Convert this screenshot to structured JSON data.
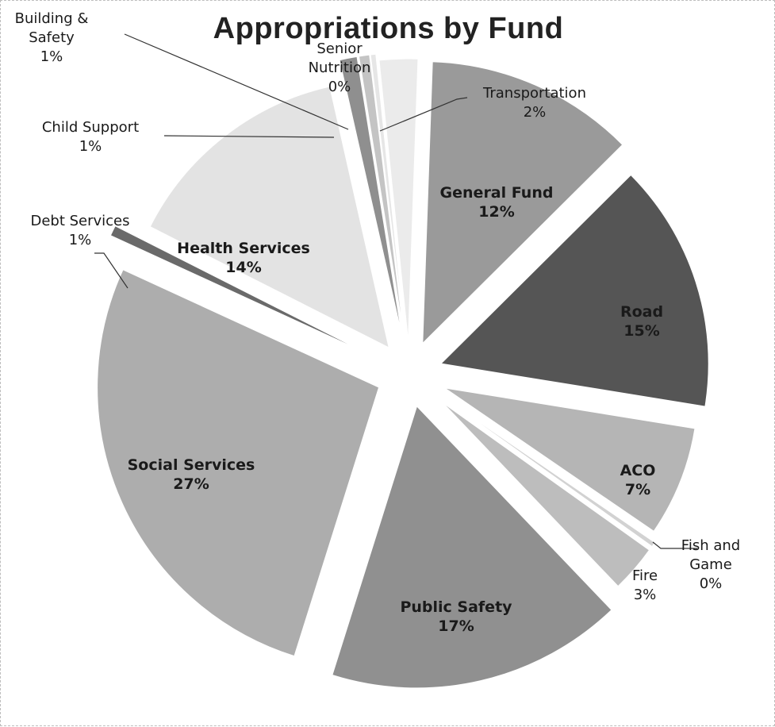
{
  "chart_data": {
    "type": "pie",
    "title": "Appropriations by Fund",
    "slices": [
      {
        "label": "General Fund",
        "pct_label": "12%",
        "value": 12,
        "color": "#9a9a9a"
      },
      {
        "label": "Road",
        "pct_label": "15%",
        "value": 15,
        "color": "#555555"
      },
      {
        "label": "ACO",
        "pct_label": "7%",
        "value": 7,
        "color": "#b5b5b5"
      },
      {
        "label": "Fish and Game",
        "pct_label": "0%",
        "value": 0.3,
        "color": "#d2d2d2"
      },
      {
        "label": "Fire",
        "pct_label": "3%",
        "value": 3,
        "color": "#bdbdbd"
      },
      {
        "label": "Public Safety",
        "pct_label": "17%",
        "value": 17,
        "color": "#909090"
      },
      {
        "label": "Social Services",
        "pct_label": "27%",
        "value": 27,
        "color": "#adadad"
      },
      {
        "label": "Debt Services",
        "pct_label": "1%",
        "value": 0.6,
        "color": "#6a6a6a"
      },
      {
        "label": "Health Services",
        "pct_label": "14%",
        "value": 14,
        "color": "#e3e3e3"
      },
      {
        "label": "Child Support",
        "pct_label": "1%",
        "value": 1,
        "color": "#8f8f8f"
      },
      {
        "label": "Building & Safety",
        "pct_label": "1%",
        "value": 0.6,
        "color": "#c4c4c4"
      },
      {
        "label": "Senior Nutrition",
        "pct_label": "0%",
        "value": 0.3,
        "color": "#e6e6e6"
      },
      {
        "label": "Transportation",
        "pct_label": "2%",
        "value": 2.2,
        "color": "#ebebeb"
      }
    ],
    "legend": "none",
    "data_labels": "category name and percentage"
  }
}
